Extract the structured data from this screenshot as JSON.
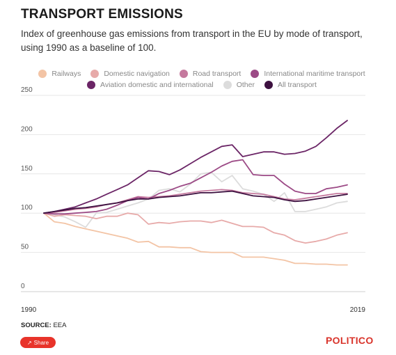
{
  "header": {
    "title": "TRANSPORT EMISSIONS",
    "subtitle": "Index of greenhouse gas emissions from transport in the EU by mode of transport, using 1990 as a baseline of 100."
  },
  "footer": {
    "source_label": "SOURCE:",
    "source_value": "EEA",
    "share_label": "Share",
    "share_icon": "share-icon",
    "logo": "POLITICO"
  },
  "chart_data": {
    "type": "line",
    "title": "",
    "xlabel": "",
    "ylabel": "",
    "ylim": [
      0,
      250
    ],
    "yticks": [
      0,
      50,
      100,
      150,
      200,
      250
    ],
    "xlim": [
      1990,
      2019
    ],
    "xtick_labels": [
      "1990",
      "2019"
    ],
    "grid": "horizontal",
    "legend_position": "top",
    "x": [
      1990,
      1991,
      1992,
      1993,
      1994,
      1995,
      1996,
      1997,
      1998,
      1999,
      2000,
      2001,
      2002,
      2003,
      2004,
      2005,
      2006,
      2007,
      2008,
      2009,
      2010,
      2011,
      2012,
      2013,
      2014,
      2015,
      2016,
      2017,
      2018,
      2019
    ],
    "series": [
      {
        "name": "Railways",
        "color": "#f3c4a5",
        "values": [
          100,
          89,
          87,
          83,
          80,
          77,
          74,
          71,
          68,
          63,
          64,
          57,
          57,
          56,
          56,
          51,
          50,
          50,
          50,
          44,
          44,
          44,
          42,
          40,
          36,
          36,
          35,
          35,
          34,
          34
        ]
      },
      {
        "name": "Domestic navigation",
        "color": "#e7aaa9",
        "values": [
          100,
          96,
          98,
          97,
          96,
          93,
          96,
          96,
          100,
          98,
          86,
          88,
          87,
          89,
          90,
          90,
          88,
          91,
          87,
          83,
          83,
          82,
          75,
          72,
          65,
          62,
          64,
          67,
          72,
          75
        ]
      },
      {
        "name": "Road transport",
        "color": "#c5799e",
        "values": [
          100,
          101,
          103,
          105,
          106,
          108,
          111,
          113,
          117,
          121,
          120,
          121,
          122,
          124,
          126,
          128,
          129,
          130,
          129,
          126,
          125,
          124,
          121,
          118,
          117,
          119,
          121,
          123,
          125,
          125
        ]
      },
      {
        "name": "International maritime transport",
        "color": "#9c4a86",
        "values": [
          100,
          99,
          99,
          100,
          101,
          102,
          105,
          110,
          116,
          120,
          118,
          125,
          129,
          134,
          138,
          145,
          152,
          160,
          166,
          168,
          149,
          148,
          148,
          137,
          128,
          125,
          125,
          131,
          133,
          136
        ]
      },
      {
        "name": "Aviation domestic and international",
        "color": "#6b2566",
        "values": [
          100,
          102,
          105,
          108,
          113,
          118,
          124,
          130,
          136,
          145,
          154,
          153,
          149,
          155,
          163,
          171,
          178,
          185,
          187,
          172,
          175,
          178,
          178,
          175,
          176,
          179,
          185,
          196,
          208,
          218
        ]
      },
      {
        "name": "Other",
        "color": "#dcdcdc",
        "values": [
          100,
          98,
          95,
          89,
          82,
          100,
          101,
          105,
          109,
          113,
          118,
          129,
          131,
          127,
          137,
          150,
          152,
          140,
          148,
          131,
          128,
          124,
          115,
          126,
          102,
          102,
          105,
          108,
          113,
          115
        ]
      },
      {
        "name": "All transport",
        "color": "#3d1140",
        "values": [
          100,
          102,
          104,
          106,
          107,
          109,
          111,
          113,
          116,
          118,
          118,
          120,
          121,
          122,
          124,
          126,
          126,
          127,
          128,
          125,
          122,
          121,
          120,
          117,
          115,
          116,
          118,
          120,
          122,
          124
        ]
      }
    ]
  }
}
